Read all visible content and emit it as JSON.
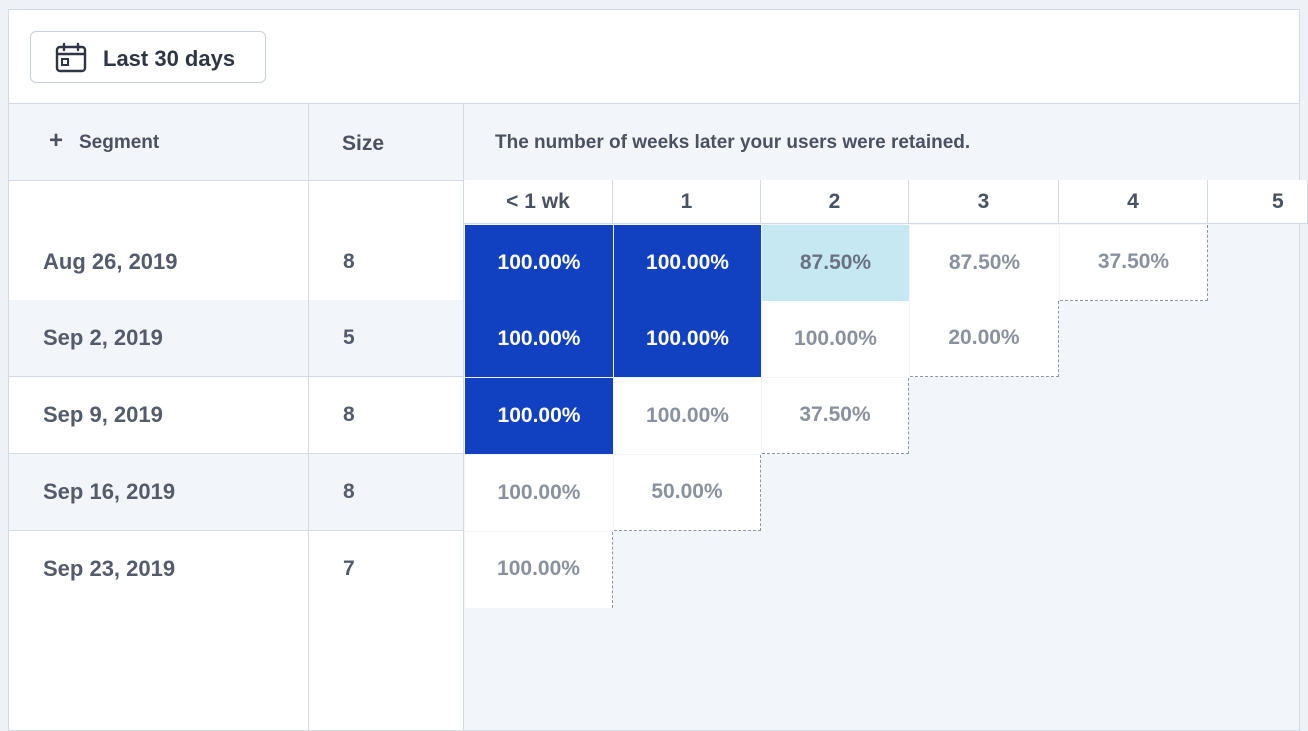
{
  "toolbar": {
    "date_range_label": "Last 30 days"
  },
  "table": {
    "segment_header": "Segment",
    "size_header": "Size",
    "weeks_caption": "The number of weeks later your users were retained.",
    "week_columns": [
      "< 1 wk",
      "1",
      "2",
      "3",
      "4",
      "5"
    ],
    "rows": [
      {
        "cohort": "Aug 26, 2019",
        "size": "8",
        "values": [
          "100.00%",
          "100.00%",
          "87.50%",
          "87.50%",
          "37.50%"
        ]
      },
      {
        "cohort": "Sep 2, 2019",
        "size": "5",
        "values": [
          "100.00%",
          "100.00%",
          "100.00%",
          "20.00%"
        ]
      },
      {
        "cohort": "Sep 9, 2019",
        "size": "8",
        "values": [
          "100.00%",
          "100.00%",
          "37.50%"
        ]
      },
      {
        "cohort": "Sep 16, 2019",
        "size": "8",
        "values": [
          "100.00%",
          "50.00%"
        ]
      },
      {
        "cohort": "Sep 23, 2019",
        "size": "7",
        "values": [
          "100.00%"
        ]
      }
    ],
    "cell_styles": [
      [
        "strong",
        "strong",
        "light",
        "plain",
        "plain"
      ],
      [
        "strong",
        "strong",
        "plain",
        "plain"
      ],
      [
        "strong",
        "plain",
        "plain"
      ],
      [
        "plain",
        "plain"
      ],
      [
        "plain"
      ]
    ]
  },
  "colors": {
    "strong_bg": "#1140c1",
    "strong_text": "#ffffff",
    "light_bg": "#c6e8f2",
    "light_text": "#6a7282",
    "plain_bg": "#ffffff",
    "plain_text": "#8a919e",
    "dashed_border": "#8d95a3"
  },
  "icons": {
    "date_button": "calendar-icon",
    "add_segment": "plus-icon"
  }
}
